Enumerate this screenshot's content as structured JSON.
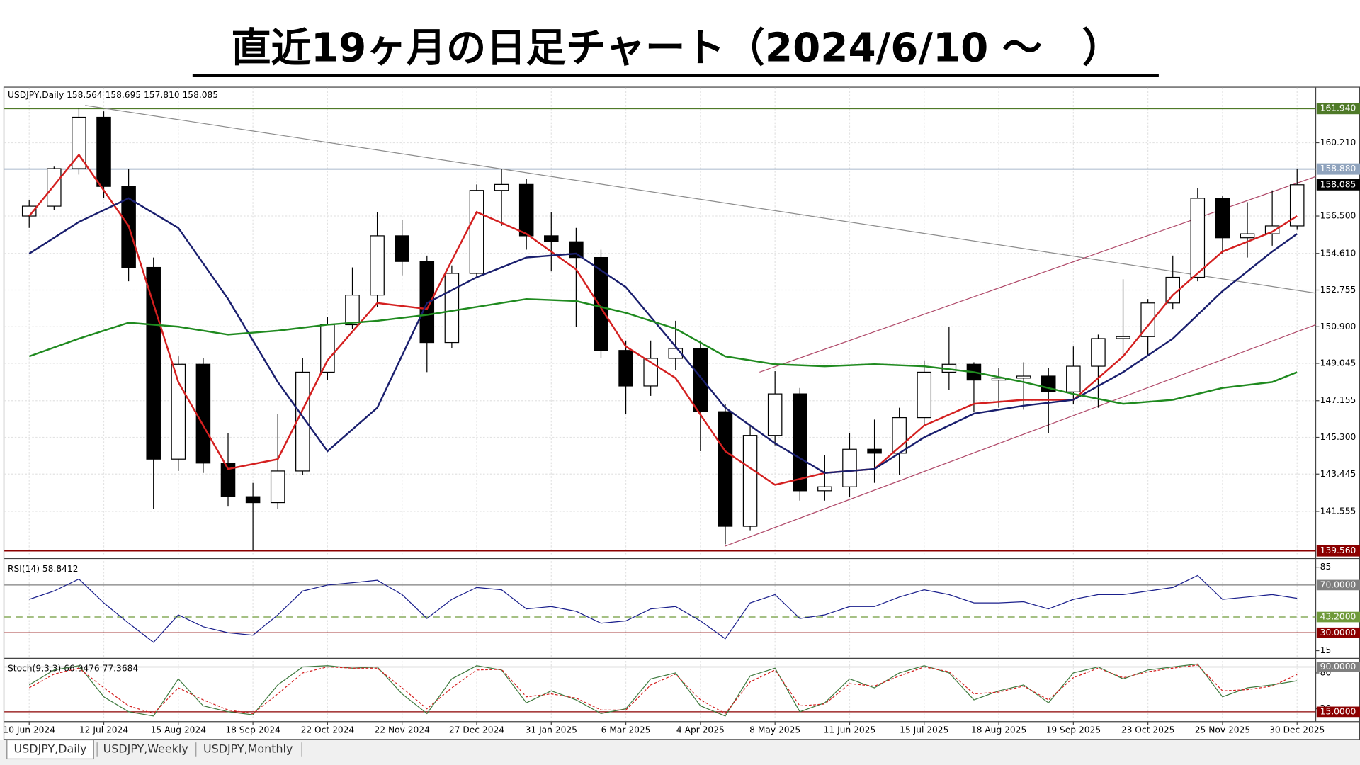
{
  "title": "直近19ヶ月の日足チャート（2024/6/10 ～　）",
  "tabs": [
    "USDJPY,Daily",
    "USDJPY,Weekly",
    "USDJPY,Monthly"
  ],
  "chart_data": [
    {
      "type": "candlestick",
      "header": "USDJPY,Daily  158.564 158.695 157.810 158.085",
      "bull_color": "#ffffff",
      "bear_color": "#000000",
      "grid": true,
      "xlim": [
        -8,
        414
      ],
      "ylim": [
        139.3,
        163.0
      ],
      "xticks": [
        {
          "value": 0,
          "label": "10 Jun 2024"
        },
        {
          "value": 24,
          "label": "12 Jul 2024"
        },
        {
          "value": 48,
          "label": "15 Aug 2024"
        },
        {
          "value": 72,
          "label": "18 Sep 2024"
        },
        {
          "value": 96,
          "label": "22 Oct 2024"
        },
        {
          "value": 120,
          "label": "22 Nov 2024"
        },
        {
          "value": 144,
          "label": "27 Dec 2024"
        },
        {
          "value": 168,
          "label": "31 Jan 2025"
        },
        {
          "value": 192,
          "label": "6 Mar 2025"
        },
        {
          "value": 216,
          "label": "4 Apr 2025"
        },
        {
          "value": 240,
          "label": "8 May 2025"
        },
        {
          "value": 264,
          "label": "11 Jun 2025"
        },
        {
          "value": 288,
          "label": "15 Jul 2025"
        },
        {
          "value": 312,
          "label": "18 Aug 2025"
        },
        {
          "value": 336,
          "label": "19 Sep 2025"
        },
        {
          "value": 360,
          "label": "23 Oct 2025"
        },
        {
          "value": 384,
          "label": "25 Nov 2025"
        },
        {
          "value": 408,
          "label": "30 Dec 2025"
        }
      ],
      "yticks": [
        {
          "value": 141.555,
          "label": "141.555"
        },
        {
          "value": 143.445,
          "label": "143.445"
        },
        {
          "value": 145.3,
          "label": "145.300"
        },
        {
          "value": 147.155,
          "label": "147.155"
        },
        {
          "value": 149.045,
          "label": "149.045"
        },
        {
          "value": 150.9,
          "label": "150.900"
        },
        {
          "value": 152.755,
          "label": "152.755"
        },
        {
          "value": 154.61,
          "label": "154.610"
        },
        {
          "value": 156.5,
          "label": "156.500"
        },
        {
          "value": 160.21,
          "label": "160.210"
        }
      ],
      "x": [
        0,
        8,
        16,
        24,
        32,
        40,
        48,
        56,
        64,
        72,
        80,
        88,
        96,
        104,
        112,
        120,
        128,
        136,
        144,
        152,
        160,
        168,
        176,
        184,
        192,
        200,
        208,
        216,
        224,
        232,
        240,
        248,
        256,
        264,
        272,
        280,
        288,
        296,
        304,
        312,
        320,
        328,
        336,
        344,
        352,
        360,
        368,
        376,
        384,
        392,
        400,
        408
      ],
      "open": [
        156.5,
        157.0,
        158.9,
        161.5,
        158.0,
        153.9,
        144.2,
        149.0,
        144.0,
        142.3,
        142.0,
        143.6,
        148.6,
        151.0,
        152.5,
        155.5,
        154.2,
        150.1,
        153.6,
        157.8,
        158.1,
        155.5,
        155.2,
        154.4,
        149.7,
        147.9,
        149.3,
        149.8,
        146.6,
        140.8,
        145.4,
        147.5,
        142.6,
        142.8,
        144.7,
        144.5,
        146.3,
        148.6,
        149.0,
        148.2,
        148.3,
        148.4,
        147.6,
        148.9,
        150.3,
        150.4,
        152.1,
        153.4,
        157.4,
        155.4,
        155.6,
        156.0
      ],
      "high": [
        157.3,
        159.0,
        161.95,
        161.8,
        158.9,
        154.4,
        149.4,
        149.3,
        145.5,
        143.0,
        146.5,
        149.3,
        151.4,
        153.9,
        156.7,
        156.3,
        154.5,
        154.0,
        158.1,
        158.9,
        158.4,
        156.7,
        155.9,
        154.8,
        150.2,
        150.2,
        151.2,
        150.2,
        147.0,
        145.9,
        148.65,
        147.8,
        144.4,
        145.5,
        146.2,
        146.8,
        149.2,
        150.9,
        149.1,
        148.8,
        149.1,
        148.8,
        149.9,
        150.5,
        153.3,
        152.3,
        154.5,
        157.9,
        157.5,
        157.2,
        157.8,
        158.9
      ],
      "low": [
        155.9,
        156.8,
        158.6,
        157.4,
        153.2,
        141.7,
        143.6,
        143.5,
        141.8,
        139.58,
        141.7,
        143.4,
        148.2,
        150.8,
        151.9,
        153.5,
        148.6,
        149.8,
        153.4,
        156.0,
        154.8,
        153.7,
        150.9,
        149.3,
        146.5,
        147.4,
        148.7,
        144.6,
        139.89,
        140.6,
        144.9,
        142.1,
        142.1,
        142.3,
        143.0,
        143.4,
        145.9,
        147.7,
        146.6,
        146.8,
        146.7,
        145.5,
        147.0,
        146.8,
        149.4,
        149.4,
        151.8,
        153.2,
        154.6,
        154.4,
        155.0,
        155.8
      ],
      "close": [
        157.0,
        158.9,
        161.5,
        158.0,
        153.9,
        144.2,
        149.0,
        144.0,
        142.3,
        142.0,
        143.6,
        148.6,
        151.0,
        152.5,
        155.5,
        154.2,
        150.1,
        153.6,
        157.8,
        158.1,
        155.5,
        155.2,
        154.4,
        149.7,
        147.9,
        149.3,
        149.8,
        146.6,
        140.8,
        145.4,
        147.5,
        142.6,
        142.8,
        144.7,
        144.5,
        146.3,
        148.6,
        149.0,
        148.2,
        148.3,
        148.4,
        147.6,
        148.9,
        150.3,
        150.4,
        152.1,
        153.4,
        157.4,
        155.4,
        155.6,
        156.0,
        158.085
      ],
      "lines": [
        {
          "color": "#d42020",
          "x": [
            0,
            16,
            32,
            48,
            64,
            80,
            96,
            112,
            128,
            144,
            160,
            176,
            192,
            208,
            224,
            240,
            256,
            272,
            288,
            304,
            320,
            336,
            352,
            368,
            384,
            400,
            408
          ],
          "values": [
            156.5,
            159.6,
            156.0,
            148.1,
            143.7,
            144.2,
            149.2,
            152.1,
            151.8,
            156.7,
            155.6,
            153.8,
            149.9,
            148.3,
            144.6,
            142.9,
            143.5,
            143.7,
            145.9,
            147.0,
            147.2,
            147.2,
            149.4,
            152.5,
            154.7,
            155.7,
            156.5
          ]
        },
        {
          "color": "#1a1f6e",
          "x": [
            0,
            16,
            32,
            48,
            64,
            80,
            96,
            112,
            128,
            144,
            160,
            176,
            192,
            208,
            224,
            240,
            256,
            272,
            288,
            304,
            320,
            336,
            352,
            368,
            384,
            400,
            408
          ],
          "values": [
            154.6,
            156.2,
            157.4,
            155.9,
            152.3,
            148.1,
            144.6,
            146.8,
            152.1,
            153.4,
            154.4,
            154.6,
            152.9,
            149.9,
            146.8,
            145.0,
            143.5,
            143.7,
            145.3,
            146.5,
            146.9,
            147.2,
            148.6,
            150.3,
            152.7,
            154.7,
            155.6
          ]
        },
        {
          "color": "#1f8a1f",
          "x": [
            0,
            16,
            32,
            48,
            64,
            80,
            96,
            112,
            128,
            144,
            160,
            176,
            192,
            208,
            224,
            240,
            256,
            272,
            288,
            304,
            320,
            336,
            352,
            368,
            384,
            400,
            408
          ],
          "values": [
            149.4,
            150.3,
            151.1,
            150.9,
            150.5,
            150.7,
            151.0,
            151.2,
            151.5,
            151.9,
            152.3,
            152.2,
            151.6,
            150.8,
            149.4,
            149.0,
            148.9,
            149.0,
            148.9,
            148.6,
            148.1,
            147.5,
            147.0,
            147.2,
            147.8,
            148.1,
            148.6
          ]
        }
      ],
      "trendlines": [
        {
          "color": "#8c8c8c",
          "x": [
            18,
            414
          ],
          "values": [
            162.1,
            152.6
          ]
        },
        {
          "color": "#b04a6a",
          "x": [
            235,
            414
          ],
          "values": [
            148.6,
            158.5
          ]
        },
        {
          "color": "#b04a6a",
          "x": [
            224,
            414
          ],
          "values": [
            139.8,
            151.0
          ]
        }
      ],
      "hlines": [
        {
          "value": 161.94,
          "label": "161.940",
          "color": "#4f7a28"
        },
        {
          "value": 158.88,
          "label": "158.880",
          "color": "#8fa3bd"
        },
        {
          "value": 139.56,
          "label": "139.560",
          "color": "#8b0000"
        }
      ],
      "current": {
        "value": 158.085,
        "label": "158.085",
        "color": "#000000"
      }
    },
    {
      "type": "line",
      "header": "RSI(14) 58.8412",
      "xlim": [
        -8,
        414
      ],
      "ylim": [
        10,
        90
      ],
      "yticks": [
        15,
        85
      ],
      "x": [
        0,
        8,
        16,
        24,
        32,
        40,
        48,
        56,
        64,
        72,
        80,
        88,
        96,
        104,
        112,
        120,
        128,
        136,
        144,
        152,
        160,
        168,
        176,
        184,
        192,
        200,
        208,
        216,
        224,
        232,
        240,
        248,
        256,
        264,
        272,
        280,
        288,
        296,
        304,
        312,
        320,
        328,
        336,
        344,
        352,
        360,
        368,
        376,
        384,
        392,
        400,
        408
      ],
      "series": [
        {
          "color": "#1a1f8c",
          "values": [
            58,
            65,
            75,
            55,
            38,
            22,
            45,
            35,
            30,
            28,
            45,
            65,
            70,
            72,
            74,
            62,
            42,
            58,
            68,
            66,
            50,
            52,
            48,
            38,
            40,
            50,
            52,
            40,
            25,
            55,
            62,
            42,
            45,
            52,
            52,
            60,
            66,
            62,
            55,
            55,
            56,
            50,
            58,
            62,
            62,
            65,
            68,
            78,
            58,
            60,
            62,
            58.84
          ]
        }
      ],
      "levels": [
        {
          "value": 70,
          "label": "70.0000",
          "color": "#7f7f7f"
        },
        {
          "value": 43.2,
          "label": "43.2000",
          "color": "#6f9a3a",
          "dashed": true
        },
        {
          "value": 30,
          "label": "30.0000",
          "color": "#8b0000"
        }
      ]
    },
    {
      "type": "line",
      "header": "Stoch(9,3,3) 66.9476 77.3684",
      "xlim": [
        -8,
        414
      ],
      "ylim": [
        0,
        100
      ],
      "yticks": [
        20,
        80
      ],
      "x": [
        0,
        8,
        16,
        24,
        32,
        40,
        48,
        56,
        64,
        72,
        80,
        88,
        96,
        104,
        112,
        120,
        128,
        136,
        144,
        152,
        160,
        168,
        176,
        184,
        192,
        200,
        208,
        216,
        224,
        232,
        240,
        248,
        256,
        264,
        272,
        280,
        288,
        296,
        304,
        312,
        320,
        328,
        336,
        344,
        352,
        360,
        368,
        376,
        384,
        392,
        400,
        408
      ],
      "series": [
        {
          "color": "#3f7a3f",
          "values": [
            60,
            85,
            92,
            40,
            15,
            8,
            70,
            25,
            15,
            10,
            60,
            90,
            92,
            88,
            90,
            45,
            12,
            70,
            92,
            85,
            30,
            50,
            35,
            12,
            20,
            70,
            80,
            25,
            8,
            75,
            88,
            15,
            30,
            70,
            55,
            80,
            92,
            80,
            35,
            50,
            60,
            30,
            80,
            90,
            70,
            85,
            90,
            95,
            40,
            55,
            60,
            66.95
          ]
        },
        {
          "color": "#d42020",
          "dashed": true,
          "values": [
            55,
            78,
            88,
            55,
            25,
            12,
            55,
            35,
            18,
            12,
            45,
            80,
            90,
            88,
            88,
            55,
            20,
            55,
            85,
            86,
            40,
            45,
            38,
            18,
            18,
            60,
            78,
            35,
            12,
            65,
            85,
            25,
            28,
            62,
            58,
            75,
            90,
            82,
            45,
            48,
            58,
            35,
            72,
            88,
            72,
            82,
            88,
            93,
            50,
            52,
            58,
            77.37
          ]
        }
      ],
      "levels": [
        {
          "value": 90,
          "label": "90.0000",
          "color": "#7f7f7f"
        },
        {
          "value": 15,
          "label": "15.0000",
          "color": "#8b0000"
        }
      ]
    }
  ]
}
